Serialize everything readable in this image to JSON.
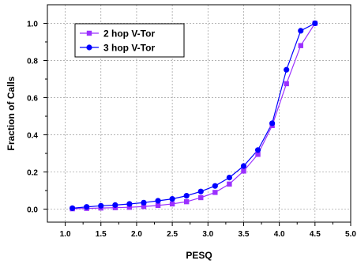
{
  "chart_data": {
    "type": "line",
    "xlabel": "PESQ",
    "ylabel": "Fraction of Calls",
    "xlim": [
      0.75,
      5.0
    ],
    "ylim": [
      -0.07,
      1.1
    ],
    "x_ticks": [
      1.0,
      1.5,
      2.0,
      2.5,
      3.0,
      3.5,
      4.0,
      4.5,
      5.0
    ],
    "x_tick_labels": [
      "1.0",
      "1.5",
      "2.0",
      "2.5",
      "3.0",
      "3.5",
      "4.0",
      "4.5",
      "5.0"
    ],
    "y_ticks": [
      0.0,
      0.2,
      0.4,
      0.6,
      0.8,
      1.0
    ],
    "y_tick_labels": [
      "0.0",
      "0.2",
      "0.4",
      "0.6",
      "0.8",
      "1.0"
    ],
    "grid": true,
    "legend_position": "top-left",
    "series": [
      {
        "name": "2 hop V-Tor",
        "color": "#9b30ff",
        "marker": "square",
        "x": [
          1.1,
          1.3,
          1.5,
          1.7,
          1.9,
          2.1,
          2.3,
          2.5,
          2.7,
          2.9,
          3.1,
          3.3,
          3.5,
          3.7,
          3.9,
          4.1,
          4.3,
          4.5
        ],
        "y": [
          0.002,
          0.004,
          0.006,
          0.008,
          0.01,
          0.014,
          0.02,
          0.028,
          0.04,
          0.062,
          0.09,
          0.135,
          0.205,
          0.295,
          0.45,
          0.675,
          0.88,
          1.0
        ]
      },
      {
        "name": "3 hop V-Tor",
        "color": "#0000ff",
        "marker": "circle",
        "x": [
          1.1,
          1.3,
          1.5,
          1.7,
          1.9,
          2.1,
          2.3,
          2.5,
          2.7,
          2.9,
          3.1,
          3.3,
          3.5,
          3.7,
          3.9,
          4.1,
          4.3,
          4.5
        ],
        "y": [
          0.005,
          0.012,
          0.018,
          0.022,
          0.028,
          0.035,
          0.045,
          0.055,
          0.072,
          0.095,
          0.125,
          0.17,
          0.232,
          0.318,
          0.462,
          0.75,
          0.96,
          1.0
        ]
      }
    ]
  }
}
